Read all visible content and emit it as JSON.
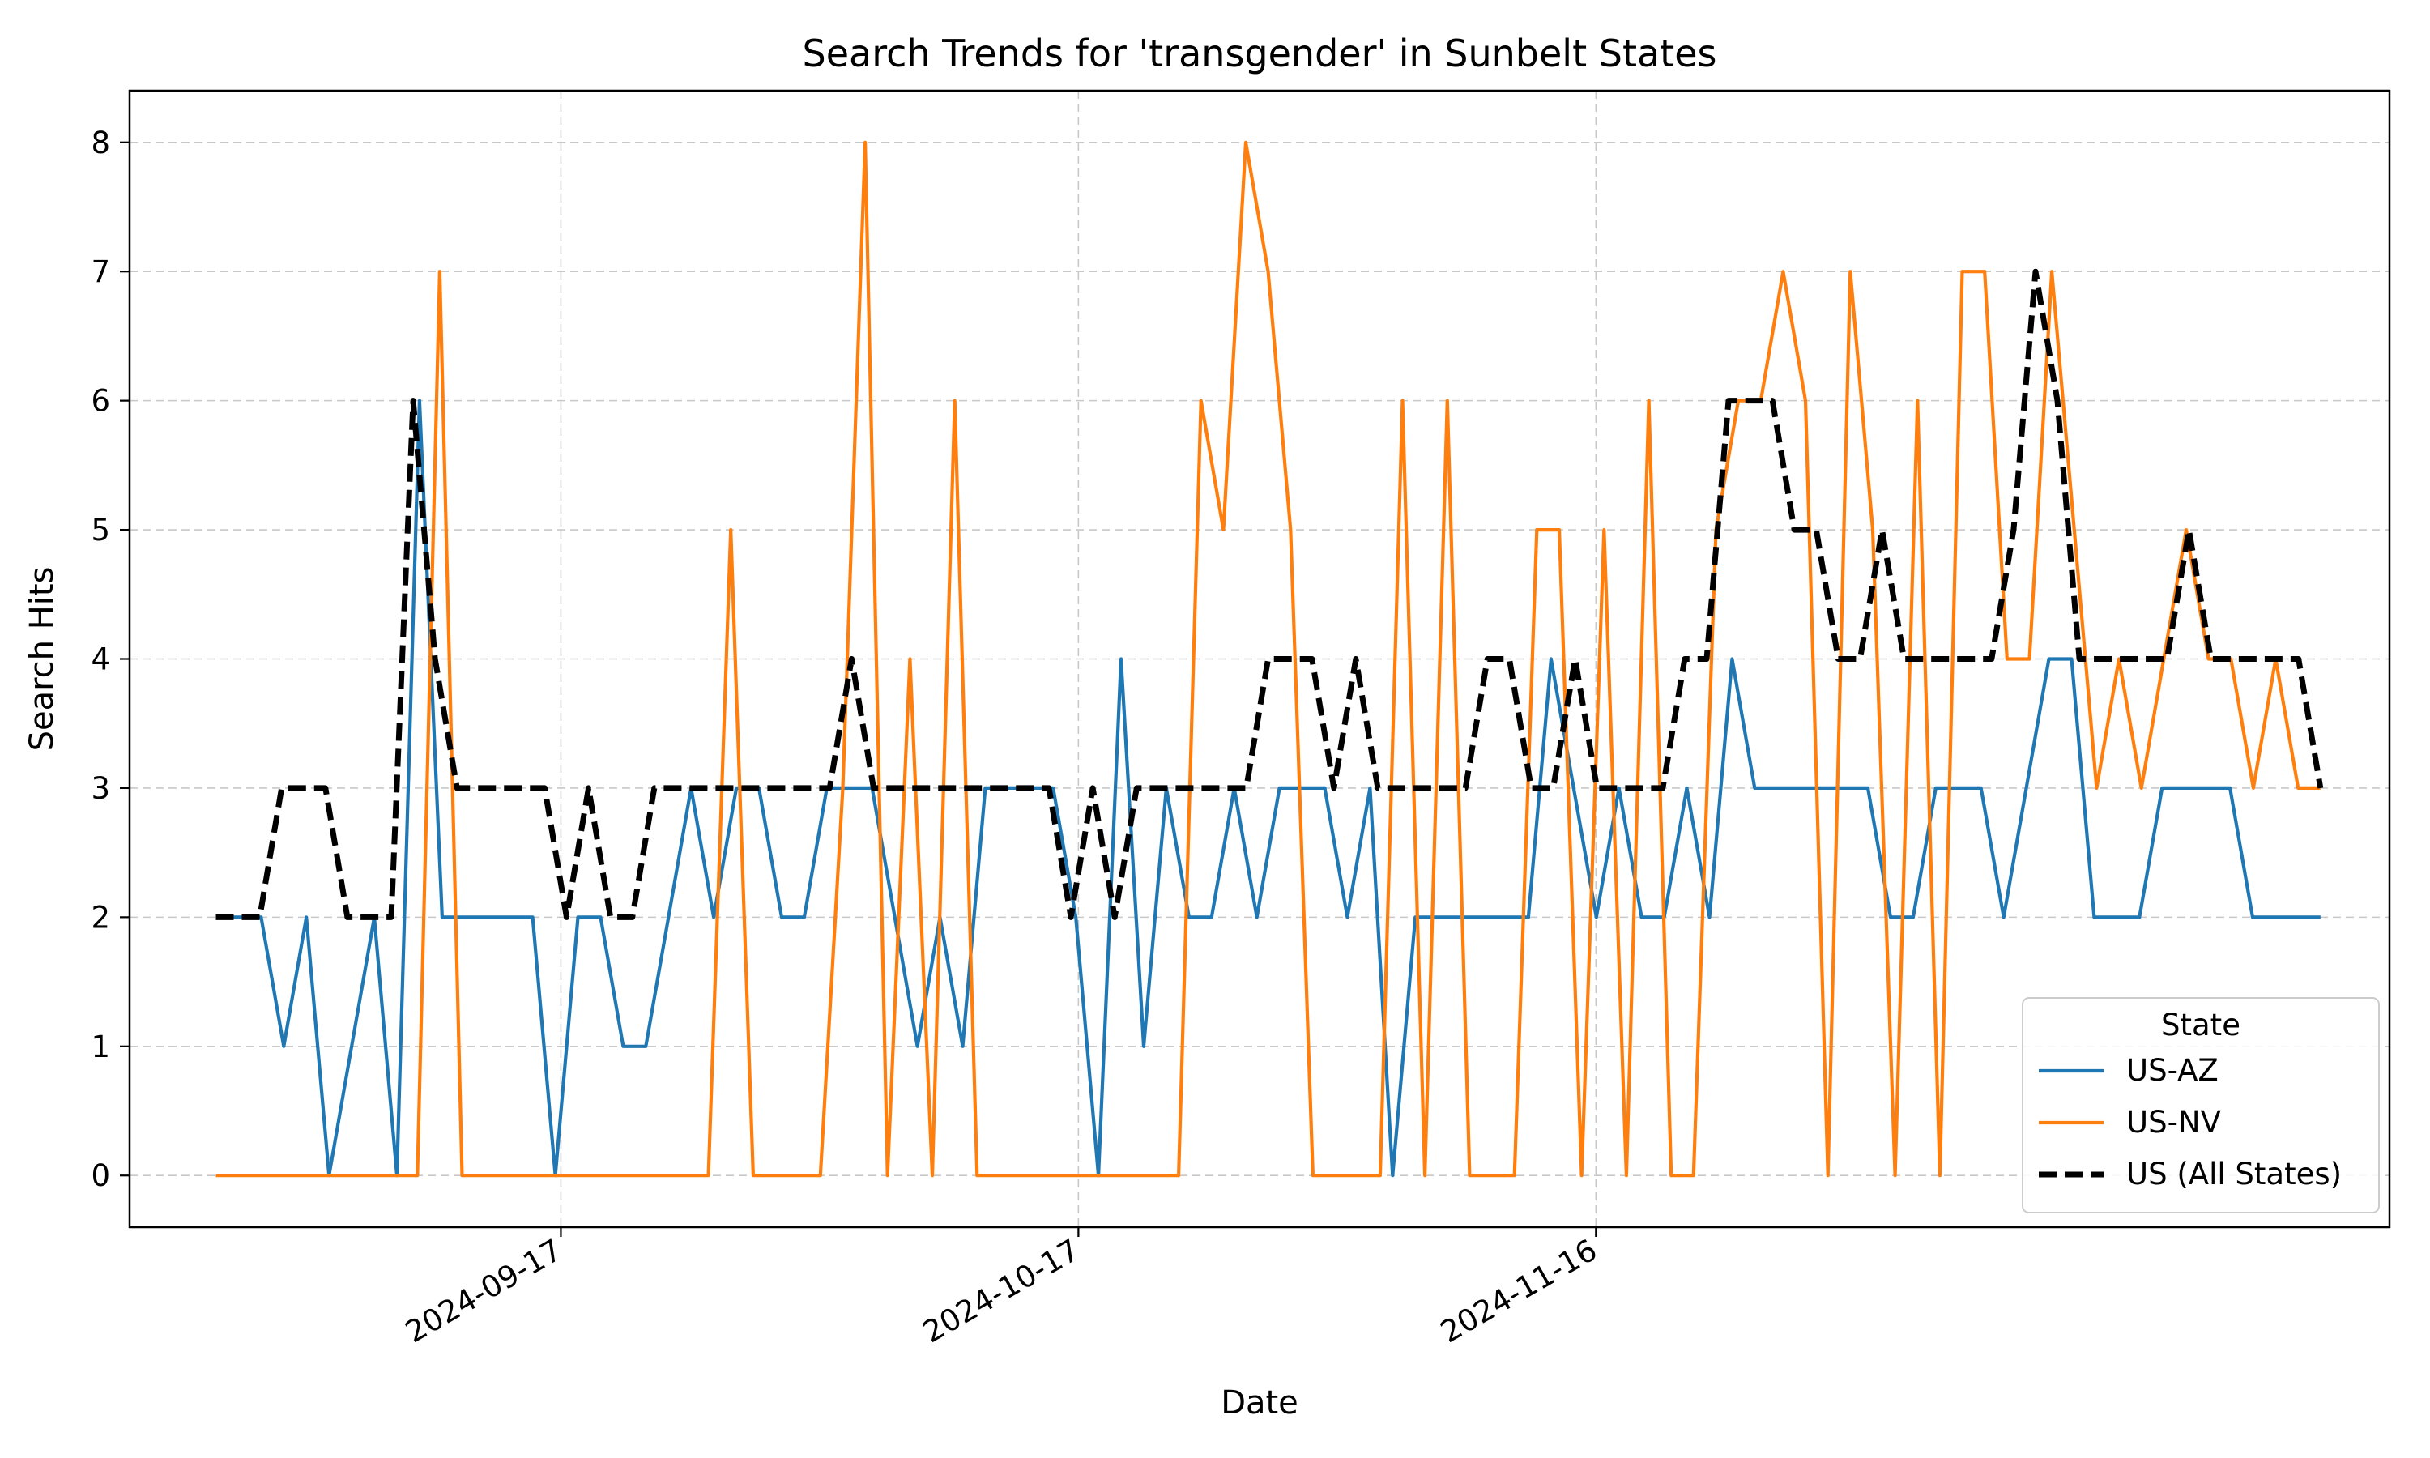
{
  "chart_data": {
    "type": "line",
    "title": "Search Trends for 'transgender' in Sunbelt States",
    "xlabel": "Date",
    "ylabel": "Search Hits",
    "x_start": "2024-08-28",
    "x_end": "2024-12-28",
    "xlim": [
      "2024-08-23",
      "2025-01-01"
    ],
    "ylim": [
      -0.4,
      8.4
    ],
    "xticks": [
      "2024-09-17",
      "2024-10-17",
      "2024-11-16"
    ],
    "yticks": [
      0,
      1,
      2,
      3,
      4,
      5,
      6,
      7,
      8
    ],
    "grid": true,
    "legend": {
      "title": "State",
      "position": "lower-right"
    },
    "series": [
      {
        "name": "US-AZ",
        "color": "#1f77b4",
        "style": "solid",
        "values": [
          2,
          2,
          2,
          1,
          2,
          0,
          1,
          2,
          0,
          6,
          2,
          2,
          2,
          2,
          2,
          0,
          2,
          2,
          1,
          1,
          2,
          3,
          2,
          3,
          3,
          2,
          2,
          3,
          3,
          3,
          2,
          1,
          2,
          1,
          3,
          3,
          3,
          3,
          2,
          0,
          4,
          1,
          3,
          2,
          2,
          3,
          2,
          3,
          3,
          3,
          2,
          3,
          0,
          2,
          2,
          2,
          2,
          2,
          2,
          4,
          3,
          2,
          3,
          2,
          2,
          3,
          2,
          4,
          3,
          3,
          3,
          3,
          3,
          3,
          2,
          2,
          3,
          3,
          3,
          2,
          3,
          4,
          4,
          2,
          2,
          2,
          3,
          3,
          3,
          3,
          2,
          2,
          2,
          2
        ]
      },
      {
        "name": "US-NV",
        "color": "#ff7f0e",
        "style": "solid",
        "values": [
          0,
          0,
          0,
          0,
          0,
          0,
          0,
          0,
          0,
          0,
          7,
          0,
          0,
          0,
          0,
          0,
          0,
          0,
          0,
          0,
          0,
          0,
          0,
          5,
          0,
          0,
          0,
          0,
          3,
          8,
          0,
          4,
          0,
          6,
          0,
          0,
          0,
          0,
          0,
          0,
          0,
          0,
          0,
          0,
          6,
          5,
          8,
          7,
          5,
          0,
          0,
          0,
          0,
          6,
          0,
          6,
          0,
          0,
          0,
          5,
          5,
          0,
          5,
          0,
          6,
          0,
          0,
          5,
          6,
          6,
          7,
          6,
          0,
          7,
          5,
          0,
          6,
          0,
          7,
          7,
          4,
          4,
          7,
          5,
          3,
          4,
          3,
          4,
          5,
          4,
          4,
          3,
          4,
          3,
          3
        ]
      },
      {
        "name": "US (All States)",
        "color": "#000000",
        "style": "dashed",
        "values": [
          2,
          2,
          2,
          3,
          3,
          3,
          2,
          2,
          2,
          6,
          4,
          3,
          3,
          3,
          3,
          3,
          2,
          3,
          2,
          2,
          3,
          3,
          3,
          3,
          3,
          3,
          3,
          3,
          3,
          4,
          3,
          3,
          3,
          3,
          3,
          3,
          3,
          3,
          3,
          2,
          3,
          2,
          3,
          3,
          3,
          3,
          3,
          3,
          4,
          4,
          4,
          3,
          4,
          3,
          3,
          3,
          3,
          3,
          4,
          4,
          3,
          3,
          4,
          3,
          3,
          3,
          3,
          4,
          4,
          6,
          6,
          6,
          5,
          5,
          4,
          4,
          5,
          4,
          4,
          4,
          4,
          4,
          5,
          7,
          6,
          4,
          4,
          4,
          4,
          4,
          5,
          4,
          4,
          4,
          4,
          4,
          3
        ]
      }
    ]
  }
}
